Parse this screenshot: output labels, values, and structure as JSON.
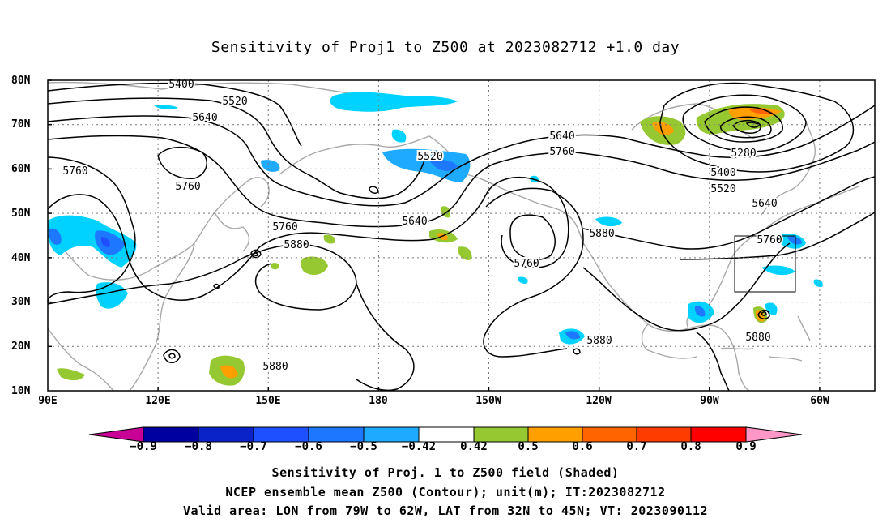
{
  "title": "Sensitivity of Proj1 to Z500 at 2023082712 +1.0 day",
  "lat_labels": [
    "80N",
    "70N",
    "60N",
    "50N",
    "40N",
    "30N",
    "20N",
    "10N"
  ],
  "lon_labels": [
    "90E",
    "120E",
    "150E",
    "180",
    "150W",
    "120W",
    "90W",
    "60W"
  ],
  "contour_labels": [
    "5400",
    "5520",
    "5640",
    "5760",
    "5760",
    "5520",
    "5640",
    "5760",
    "5880",
    "5760",
    "5880",
    "5640",
    "5760",
    "5880",
    "5880",
    "5280",
    "5400",
    "5520",
    "5640",
    "5760",
    "5880"
  ],
  "colorbar": {
    "labels": [
      "−0.9",
      "−0.8",
      "−0.7",
      "−0.6",
      "−0.5",
      "−0.42",
      "0.42",
      "0.5",
      "0.6",
      "0.7",
      "0.8",
      "0.9"
    ],
    "colors": [
      "#c80096",
      "#0000a0",
      "#0a23c8",
      "#1e50ff",
      "#1e78ff",
      "#1eaaff",
      "#00d2ff",
      "#ffffff",
      "#96c832",
      "#ffa000",
      "#ff6400",
      "#ff3c00",
      "#ff0000",
      "#ff96c8"
    ]
  },
  "captions": [
    "Sensitivity of Proj. 1 to Z500 field (Shaded)",
    "NCEP ensemble mean Z500 (Contour); unit(m); IT:2023082712",
    "Valid area: LON from 79W to 62W, LAT from 32N to 45N; VT: 2023090112"
  ]
}
